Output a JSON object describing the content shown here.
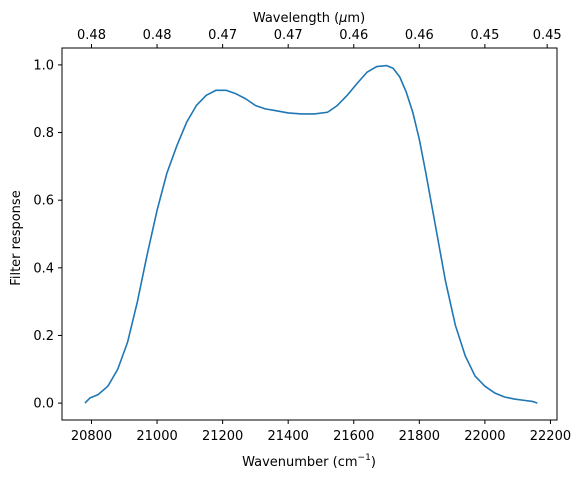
{
  "chart_data": {
    "type": "line",
    "xlabel": "Wavenumber (cm",
    "xlabel_sup": "−1",
    "xlabel_end": ")",
    "ylabel": "Filter response",
    "top_xlabel": "Wavelength (",
    "top_xlabel_mu": "μ",
    "top_xlabel_end": "m)",
    "xlim": [
      20710,
      22220
    ],
    "ylim": [
      -0.05,
      1.05
    ],
    "x_ticks": [
      20800,
      21000,
      21200,
      21400,
      21600,
      21800,
      22000,
      22200
    ],
    "y_ticks": [
      0.0,
      0.2,
      0.4,
      0.6,
      0.8,
      1.0
    ],
    "y_tick_labels": [
      "0.0",
      "0.2",
      "0.4",
      "0.6",
      "0.8",
      "1.0"
    ],
    "top_ticks_at_wavenumber": [
      20800,
      21000,
      21200,
      21400,
      21600,
      21800,
      22000,
      22190
    ],
    "top_tick_labels": [
      "0.48",
      "0.48",
      "0.47",
      "0.47",
      "0.46",
      "0.46",
      "0.45",
      "0.45"
    ],
    "series_color": "#1f77b4",
    "grid": false,
    "series": [
      {
        "x": [
          20780,
          20795,
          20820,
          20850,
          20880,
          20910,
          20940,
          20970,
          21000,
          21030,
          21060,
          21090,
          21120,
          21150,
          21180,
          21210,
          21240,
          21270,
          21300,
          21330,
          21360,
          21400,
          21440,
          21480,
          21520,
          21550,
          21580,
          21610,
          21640,
          21670,
          21700,
          21720,
          21740,
          21760,
          21780,
          21800,
          21820,
          21850,
          21880,
          21910,
          21940,
          21970,
          22000,
          22030,
          22060,
          22090,
          22120,
          22145,
          22160
        ],
        "y": [
          0.0,
          0.015,
          0.025,
          0.05,
          0.1,
          0.18,
          0.3,
          0.44,
          0.57,
          0.68,
          0.76,
          0.83,
          0.88,
          0.91,
          0.925,
          0.925,
          0.915,
          0.9,
          0.88,
          0.87,
          0.865,
          0.858,
          0.855,
          0.855,
          0.86,
          0.88,
          0.91,
          0.945,
          0.978,
          0.995,
          0.998,
          0.99,
          0.965,
          0.92,
          0.86,
          0.78,
          0.68,
          0.52,
          0.36,
          0.23,
          0.14,
          0.08,
          0.05,
          0.03,
          0.018,
          0.012,
          0.008,
          0.005,
          0.0
        ]
      }
    ]
  }
}
